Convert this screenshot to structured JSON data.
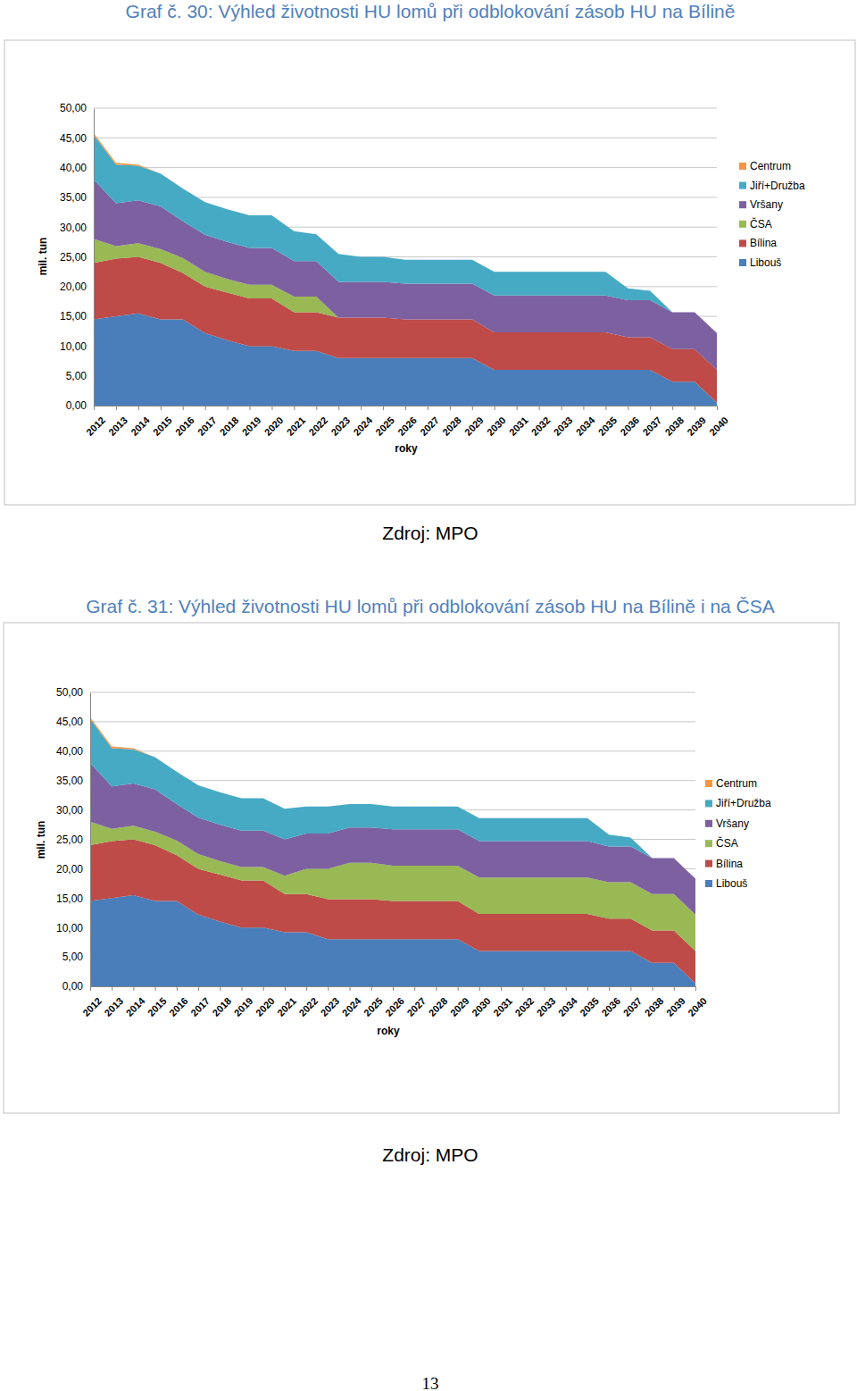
{
  "chart_data": [
    {
      "type": "area",
      "stacked": true,
      "grid": true,
      "legend": "right",
      "title": "Graf č. 30: Výhled životnosti HU lomů při odblokování zásob HU na Bílině",
      "xlabel": "roky",
      "ylabel": "mil. tun",
      "source": "Zdroj: MPO",
      "categories": [
        "2012",
        "2013",
        "2014",
        "2015",
        "2016",
        "2017",
        "2018",
        "2019",
        "2020",
        "2021",
        "2022",
        "2023",
        "2024",
        "2025",
        "2026",
        "2027",
        "2028",
        "2029",
        "2030",
        "2031",
        "2032",
        "2033",
        "2034",
        "2035",
        "2036",
        "2037",
        "2038",
        "2039",
        "2040"
      ],
      "ylim": [
        0,
        50
      ],
      "yticks": [
        {
          "value": 0,
          "label": "0,00"
        },
        {
          "value": 5,
          "label": "5,00"
        },
        {
          "value": 10,
          "label": "10,00"
        },
        {
          "value": 15,
          "label": "15,00"
        },
        {
          "value": 20,
          "label": "20,00"
        },
        {
          "value": 25,
          "label": "25,00"
        },
        {
          "value": 30,
          "label": "30,00"
        },
        {
          "value": 35,
          "label": "35,00"
        },
        {
          "value": 40,
          "label": "40,00"
        },
        {
          "value": 45,
          "label": "45,00"
        },
        {
          "value": 50,
          "label": "50,00"
        }
      ],
      "series": [
        {
          "name": "Libouš",
          "color": "#4a7ebb",
          "values": [
            14.5,
            15,
            15.5,
            14.5,
            14.5,
            12.2,
            11,
            10,
            10,
            9.2,
            9.2,
            8,
            8,
            8,
            8,
            8,
            8,
            8,
            6,
            6,
            6,
            6,
            6,
            6,
            6,
            6,
            4,
            4,
            0.5
          ]
        },
        {
          "name": "Bílina",
          "color": "#be4b48",
          "values": [
            9.5,
            9.7,
            9.5,
            9.5,
            7.8,
            7.8,
            8,
            8,
            8,
            6.5,
            6.5,
            6.8,
            6.8,
            6.8,
            6.5,
            6.5,
            6.5,
            6.5,
            6.3,
            6.3,
            6.3,
            6.3,
            6.3,
            6.3,
            5.5,
            5.5,
            5.5,
            5.5,
            5.5
          ]
        },
        {
          "name": "ČSA",
          "color": "#98b954",
          "values": [
            4,
            2.1,
            2.3,
            2.3,
            2.5,
            2.5,
            2.3,
            2.3,
            2.3,
            2.6,
            2.6,
            0,
            0,
            0,
            0,
            0,
            0,
            0,
            0,
            0,
            0,
            0,
            0,
            0,
            0,
            0,
            0,
            0,
            0
          ]
        },
        {
          "name": "Vršany",
          "color": "#7d60a0",
          "values": [
            10,
            7.2,
            7.2,
            7.2,
            6.2,
            6.2,
            6.2,
            6.2,
            6.2,
            6,
            6,
            6,
            6,
            6,
            6,
            6,
            6,
            6,
            6.2,
            6.2,
            6.2,
            6.2,
            6.2,
            6.2,
            6.2,
            6.2,
            6.2,
            6.2,
            6.2
          ]
        },
        {
          "name": "Jiří+Družba",
          "color": "#46aac5",
          "values": [
            7.5,
            6.5,
            5.8,
            5.5,
            5.5,
            5.5,
            5.5,
            5.5,
            5.5,
            5,
            4.5,
            4.7,
            4.2,
            4.2,
            4,
            4,
            4,
            4,
            4,
            4,
            4,
            4,
            4,
            4,
            2,
            1.6,
            0,
            0,
            0
          ]
        },
        {
          "name": "Centrum",
          "color": "#f79646",
          "values": [
            0.3,
            0.3,
            0.2,
            0,
            0,
            0,
            0,
            0,
            0,
            0,
            0,
            0,
            0,
            0,
            0,
            0,
            0,
            0,
            0,
            0,
            0,
            0,
            0,
            0,
            0,
            0,
            0,
            0,
            0
          ]
        }
      ]
    },
    {
      "type": "area",
      "stacked": true,
      "grid": true,
      "legend": "right",
      "title": "Graf č. 31: Výhled životnosti HU lomů při odblokování zásob HU na Bílině i na ČSA",
      "xlabel": "roky",
      "ylabel": "mil. tun",
      "source": "Zdroj: MPO",
      "categories": [
        "2012",
        "2013",
        "2014",
        "2015",
        "2016",
        "2017",
        "2018",
        "2019",
        "2020",
        "2021",
        "2022",
        "2023",
        "2024",
        "2025",
        "2026",
        "2027",
        "2028",
        "2029",
        "2030",
        "2031",
        "2032",
        "2033",
        "2034",
        "2035",
        "2036",
        "2037",
        "2038",
        "2039",
        "2040"
      ],
      "ylim": [
        0,
        50
      ],
      "yticks": [
        {
          "value": 0,
          "label": "0,00"
        },
        {
          "value": 5,
          "label": "5,00"
        },
        {
          "value": 10,
          "label": "10,00"
        },
        {
          "value": 15,
          "label": "15,00"
        },
        {
          "value": 20,
          "label": "20,00"
        },
        {
          "value": 25,
          "label": "25,00"
        },
        {
          "value": 30,
          "label": "30,00"
        },
        {
          "value": 35,
          "label": "35,00"
        },
        {
          "value": 40,
          "label": "40,00"
        },
        {
          "value": 45,
          "label": "45,00"
        },
        {
          "value": 50,
          "label": "50,00"
        }
      ],
      "series": [
        {
          "name": "Libouš",
          "color": "#4a7ebb",
          "values": [
            14.5,
            15,
            15.5,
            14.5,
            14.5,
            12.2,
            11,
            10,
            10,
            9.2,
            9.2,
            8,
            8,
            8,
            8,
            8,
            8,
            8,
            6,
            6,
            6,
            6,
            6,
            6,
            6,
            6,
            4,
            4,
            0.5
          ]
        },
        {
          "name": "Bílina",
          "color": "#be4b48",
          "values": [
            9.5,
            9.7,
            9.5,
            9.5,
            7.8,
            7.8,
            8,
            8,
            8,
            6.5,
            6.5,
            6.8,
            6.8,
            6.8,
            6.5,
            6.5,
            6.5,
            6.5,
            6.3,
            6.3,
            6.3,
            6.3,
            6.3,
            6.3,
            5.5,
            5.5,
            5.5,
            5.5,
            5.5
          ]
        },
        {
          "name": "ČSA",
          "color": "#98b954",
          "values": [
            4,
            2.1,
            2.3,
            2.3,
            2.5,
            2.5,
            2.3,
            2.3,
            2.3,
            3.1,
            4.3,
            5.2,
            6.2,
            6.2,
            6,
            6,
            6,
            6,
            6.2,
            6.2,
            6.2,
            6.2,
            6.2,
            6.2,
            6.2,
            6.2,
            6.2,
            6.2,
            6.2
          ]
        },
        {
          "name": "Vršany",
          "color": "#7d60a0",
          "values": [
            10,
            7.2,
            7.2,
            7.2,
            6.2,
            6.2,
            6.2,
            6.2,
            6.2,
            6.2,
            6,
            6,
            6,
            6,
            6.2,
            6.2,
            6.2,
            6.2,
            6.2,
            6.2,
            6.2,
            6.2,
            6.2,
            6.2,
            6.1,
            6.1,
            6.1,
            6.1,
            6.1
          ]
        },
        {
          "name": "Jiří+Družba",
          "color": "#46aac5",
          "values": [
            7.5,
            6.5,
            5.8,
            5.5,
            5.5,
            5.5,
            5.5,
            5.5,
            5.5,
            5.2,
            4.6,
            4.6,
            4,
            4,
            3.9,
            3.9,
            3.9,
            3.9,
            3.9,
            3.9,
            3.9,
            3.9,
            3.9,
            3.9,
            2,
            1.5,
            0,
            0,
            0
          ]
        },
        {
          "name": "Centrum",
          "color": "#f79646",
          "values": [
            0.3,
            0.3,
            0.2,
            0,
            0,
            0,
            0,
            0,
            0,
            0,
            0,
            0,
            0,
            0,
            0,
            0,
            0,
            0,
            0,
            0,
            0,
            0,
            0,
            0,
            0,
            0,
            0,
            0,
            0
          ]
        }
      ]
    }
  ],
  "page_number": 13
}
